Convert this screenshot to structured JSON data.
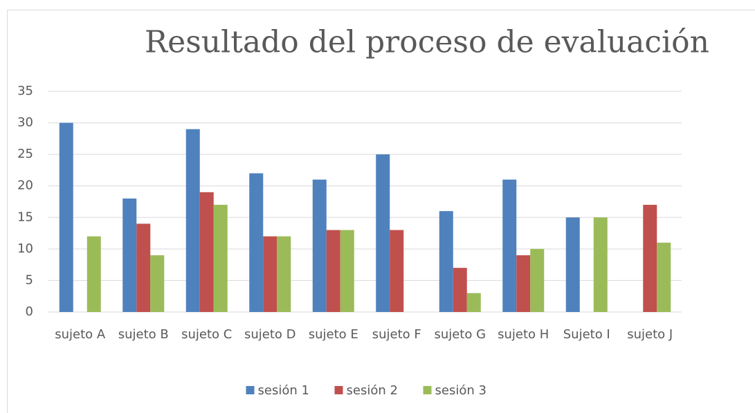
{
  "chart_data": {
    "type": "bar",
    "title": "Resultado del proceso de evaluación",
    "categories": [
      "sujeto A",
      "sujeto B",
      "sujeto C",
      "sujeto D",
      "sujeto E",
      "sujeto F",
      "sujeto G",
      "sujeto H",
      "Sujeto I",
      "sujeto J"
    ],
    "series": [
      {
        "name": "sesión 1",
        "color": "#4f81bd",
        "values": [
          30,
          18,
          29,
          22,
          21,
          25,
          16,
          21,
          15,
          null
        ]
      },
      {
        "name": "sesión 2",
        "color": "#c0504d",
        "values": [
          null,
          14,
          19,
          12,
          13,
          13,
          7,
          9,
          null,
          17
        ]
      },
      {
        "name": "sesión 3",
        "color": "#9bbb59",
        "values": [
          12,
          9,
          17,
          12,
          13,
          null,
          3,
          10,
          15,
          11
        ]
      }
    ],
    "ylim": [
      0,
      35
    ],
    "yticks": [
      0,
      5,
      10,
      15,
      20,
      25,
      30,
      35
    ],
    "grid": true,
    "legend": "bottom"
  }
}
